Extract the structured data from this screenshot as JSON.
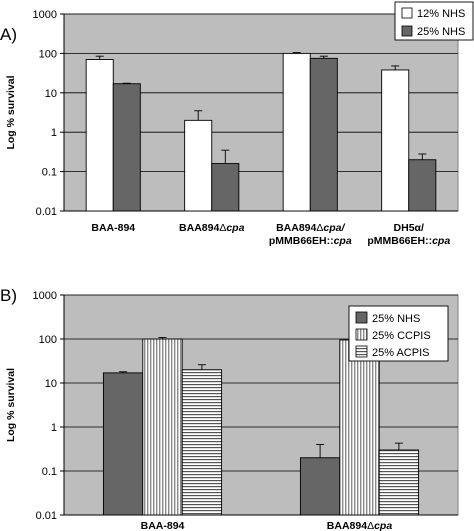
{
  "chart_data": [
    {
      "panel": "A)",
      "type": "bar",
      "ylabel": "Log % survival",
      "yscale": "log",
      "ylim": [
        0.01,
        1000
      ],
      "yticks": [
        "0.01",
        "0.1",
        "1",
        "10",
        "100",
        "1000"
      ],
      "grid": true,
      "legend_position": "top-right",
      "categories": [
        {
          "lines": [
            "BAA-894"
          ]
        },
        {
          "lines": [
            [
              "BAA894",
              "Δ",
              "cpa"
            ]
          ]
        },
        {
          "lines": [
            [
              "BAA894",
              "Δ",
              "cpa/"
            ],
            [
              "pMMB66EH::",
              "",
              "cpa"
            ]
          ]
        },
        {
          "lines": [
            [
              "DH5α/",
              "",
              ""
            ],
            [
              "pMMB66EH::",
              "",
              "cpa"
            ]
          ]
        }
      ],
      "series": [
        {
          "name": "12% NHS",
          "fill": "#ffffff",
          "pattern": "solid",
          "values": [
            70,
            2,
            100,
            38
          ],
          "errors": [
            85,
            3.5,
            105,
            48
          ]
        },
        {
          "name": "25% NHS",
          "fill": "#666666",
          "pattern": "solid",
          "values": [
            17,
            0.16,
            75,
            0.2
          ],
          "errors": [
            17.5,
            0.35,
            85,
            0.28
          ]
        }
      ]
    },
    {
      "panel": "B)",
      "type": "bar",
      "ylabel": "Log % survival",
      "yscale": "log",
      "ylim": [
        0.01,
        1000
      ],
      "yticks": [
        "0.01",
        "0.1",
        "1",
        "10",
        "100",
        "1000"
      ],
      "grid": true,
      "legend_position": "top-right",
      "categories": [
        {
          "lines": [
            "BAA-894"
          ]
        },
        {
          "lines": [
            [
              "BAA894",
              "Δ",
              "cpa"
            ]
          ]
        }
      ],
      "series": [
        {
          "name": "25% NHS",
          "fill": "#666666",
          "pattern": "solid",
          "values": [
            17,
            0.2
          ],
          "errors": [
            18,
            0.4
          ]
        },
        {
          "name": "25% CCPIS",
          "fill": "#dddddd",
          "pattern": "vlines",
          "values": [
            100,
            95
          ],
          "errors": [
            108,
            97
          ]
        },
        {
          "name": "25% ACPIS",
          "fill": "#ffffff",
          "pattern": "hlines",
          "values": [
            20,
            0.3
          ],
          "errors": [
            26,
            0.43
          ]
        }
      ]
    }
  ]
}
